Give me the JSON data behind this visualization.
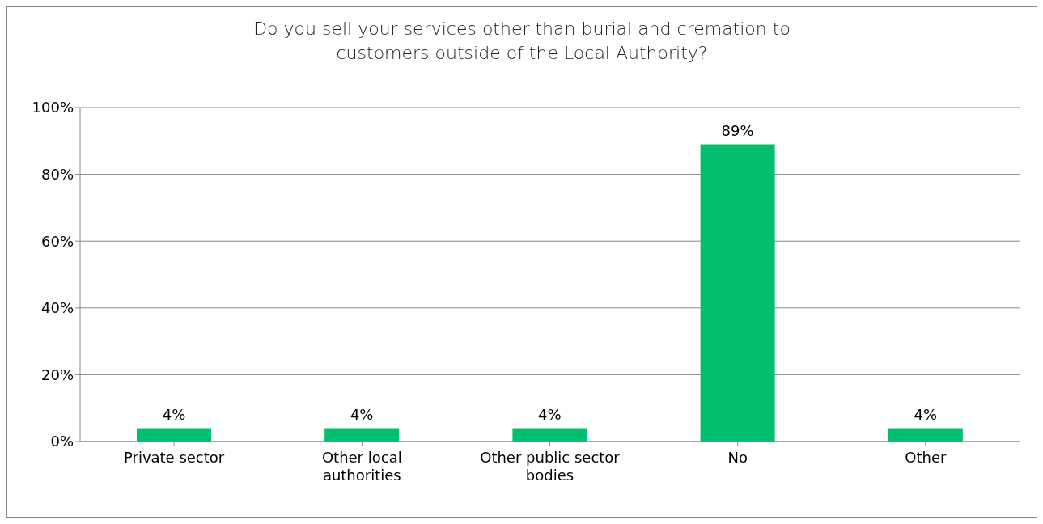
{
  "chart_data": {
    "type": "bar",
    "title": "Do you sell your services other than burial and cremation to customers outside of the Local Authority?",
    "categories": [
      "Private sector",
      "Other local authorities",
      "Other public sector bodies",
      "No",
      "Other"
    ],
    "values": [
      4,
      4,
      4,
      89,
      4
    ],
    "value_labels": [
      "4%",
      "4%",
      "4%",
      "89%",
      "4%"
    ],
    "color": "#00bf6f",
    "ylim": [
      0,
      100
    ],
    "yticks": [
      {
        "value": 0,
        "label": "0%"
      },
      {
        "value": 20,
        "label": "20%"
      },
      {
        "value": 40,
        "label": "40%"
      },
      {
        "value": 60,
        "label": "60%"
      },
      {
        "value": 80,
        "label": "80%"
      },
      {
        "value": 100,
        "label": "100%"
      }
    ],
    "grid": "y"
  }
}
